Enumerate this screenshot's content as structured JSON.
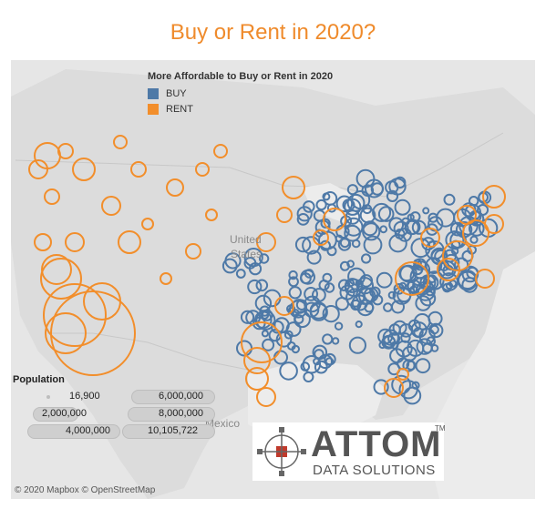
{
  "title": "Buy or Rent in 2020?",
  "legend": {
    "title": "More Affordable to Buy or Rent in 2020",
    "items": [
      {
        "label": "BUY",
        "color": "#4e79a7"
      },
      {
        "label": "RENT",
        "color": "#f28e2b"
      }
    ]
  },
  "population_legend": {
    "title": "Population",
    "values": [
      "16,900",
      "2,000,000",
      "4,000,000",
      "6,000,000",
      "8,000,000",
      "10,105,722"
    ]
  },
  "place_labels": {
    "country": "United States",
    "country_line1": "United",
    "country_line2": "States",
    "mexico": "Mexico"
  },
  "credit": "© 2020 Mapbox © OpenStreetMap",
  "logo": {
    "name": "ATTOM",
    "sub": "DATA SOLUTIONS",
    "tm": "TM"
  }
}
